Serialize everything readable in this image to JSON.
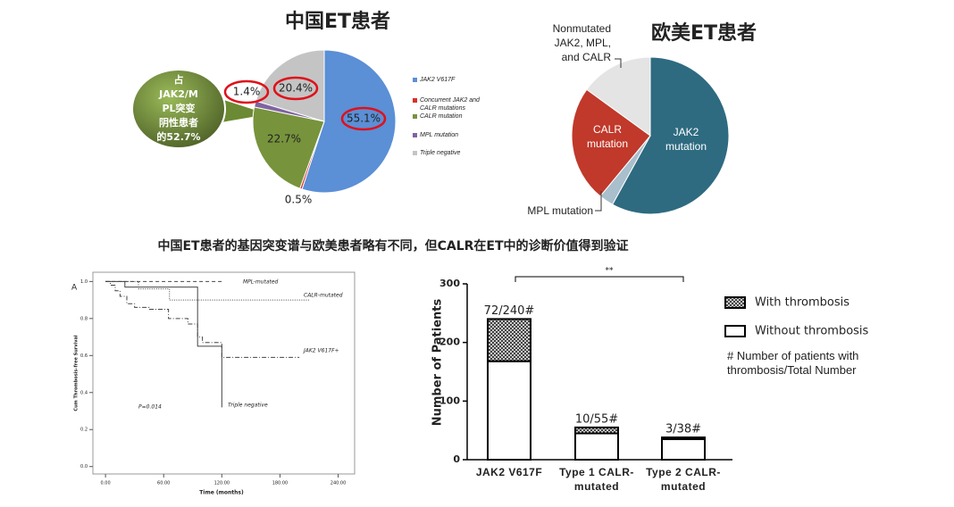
{
  "caption": "中国ET患者的基因突变谱与欧美患者略有不同，但CALR在ET中的诊断价值得到验证",
  "callout": {
    "lines": [
      "占",
      "JAK2/M",
      "PL突变",
      "阴性患者",
      "的52.7%"
    ]
  },
  "chart_data": [
    {
      "type": "pie",
      "title": "中国ET患者",
      "categories": [
        "JAK2 V617F",
        "Concurrent JAK2 and CALR mutations",
        "CALR mutation",
        "MPL mutation",
        "Triple negative"
      ],
      "values": [
        55.1,
        0.5,
        22.7,
        1.4,
        20.4
      ],
      "value_labels": [
        "55.1%",
        "0.5%",
        "22.7%",
        "1.4%",
        "20.4%"
      ],
      "colors": [
        "#5b8fd6",
        "#d9302a",
        "#77933c",
        "#8064a2",
        "#c4c4c4"
      ],
      "legend": "right"
    },
    {
      "type": "pie",
      "title": "欧美ET患者",
      "categories": [
        "JAK2 mutation",
        "MPL mutation",
        "CALR mutation",
        "Nonmutated JAK2, MPL, and CALR"
      ],
      "values": [
        58,
        3,
        24,
        15
      ],
      "colors": [
        "#2e6b80",
        "#a9bfcc",
        "#c0392b",
        "#e4e4e4"
      ]
    },
    {
      "type": "line",
      "panel": "A",
      "xlabel": "Time (months)",
      "ylabel": "Cum Thrombosis-free Survival",
      "annotation": "P=0.014",
      "xlim": [
        -13,
        257
      ],
      "ylim": [
        -0.04,
        1.05
      ],
      "xticks": [
        {
          "value": 0,
          "label": "0.00"
        },
        {
          "value": 60,
          "label": "60.00"
        },
        {
          "value": 120,
          "label": "120.00"
        },
        {
          "value": 180,
          "label": "180.00"
        },
        {
          "value": 240,
          "label": "240.00"
        }
      ],
      "yticks": [
        {
          "value": 0,
          "label": "0.0"
        },
        {
          "value": 0.2,
          "label": "0.2"
        },
        {
          "value": 0.4,
          "label": "0.4"
        },
        {
          "value": 0.6,
          "label": "0.6"
        },
        {
          "value": 0.8,
          "label": "0.8"
        },
        {
          "value": 1,
          "label": "1.0"
        }
      ],
      "series": [
        {
          "name": "MPL-mutated",
          "color": "#444444",
          "style": "dashed",
          "x": [
            0,
            121
          ],
          "values": [
            1,
            1
          ]
        },
        {
          "name": "CALR-mutated",
          "color": "#444444",
          "style": "dotted",
          "x": [
            0,
            34,
            34,
            66,
            66,
            211
          ],
          "values": [
            1,
            1,
            0.96,
            0.96,
            0.9,
            0.9
          ]
        },
        {
          "name": "JAK2 V617F+",
          "color": "#444444",
          "style": "dashdot",
          "x": [
            0,
            5,
            5,
            10,
            10,
            15,
            15,
            22,
            22,
            30,
            30,
            45,
            45,
            65,
            65,
            85,
            85,
            95,
            95,
            100,
            100,
            120,
            120,
            200
          ],
          "values": [
            1,
            1,
            0.98,
            0.98,
            0.95,
            0.95,
            0.92,
            0.92,
            0.88,
            0.88,
            0.86,
            0.86,
            0.85,
            0.85,
            0.8,
            0.8,
            0.77,
            0.77,
            0.7,
            0.7,
            0.67,
            0.67,
            0.59,
            0.59
          ]
        },
        {
          "name": "Triple negative",
          "color": "#444444",
          "style": "solid",
          "x": [
            0,
            20,
            20,
            95,
            95,
            120,
            120
          ],
          "values": [
            1,
            1,
            0.97,
            0.97,
            0.65,
            0.65,
            0.32
          ]
        }
      ]
    },
    {
      "type": "bar",
      "stacked": true,
      "ylabel": "Number of Patients",
      "categories": [
        "JAK2 V617F",
        "Type 1 CALR-mutated",
        "Type 2 CALR-mutated"
      ],
      "ylim": [
        0,
        300
      ],
      "yticks": [
        0,
        100,
        200,
        300
      ],
      "series": [
        {
          "name": "Without thrombosis",
          "color": "#ffffff",
          "values": [
            168,
            45,
            35
          ]
        },
        {
          "name": "With thrombosis",
          "color": "#555555",
          "pattern": "crosshatch",
          "values": [
            72,
            10,
            3
          ],
          "value_labels": [
            "72/240#",
            "10/55#",
            "3/38#"
          ]
        }
      ],
      "significance": "**",
      "note": "# Number of patients with thrombosis/Total Number",
      "legend": "right"
    }
  ]
}
